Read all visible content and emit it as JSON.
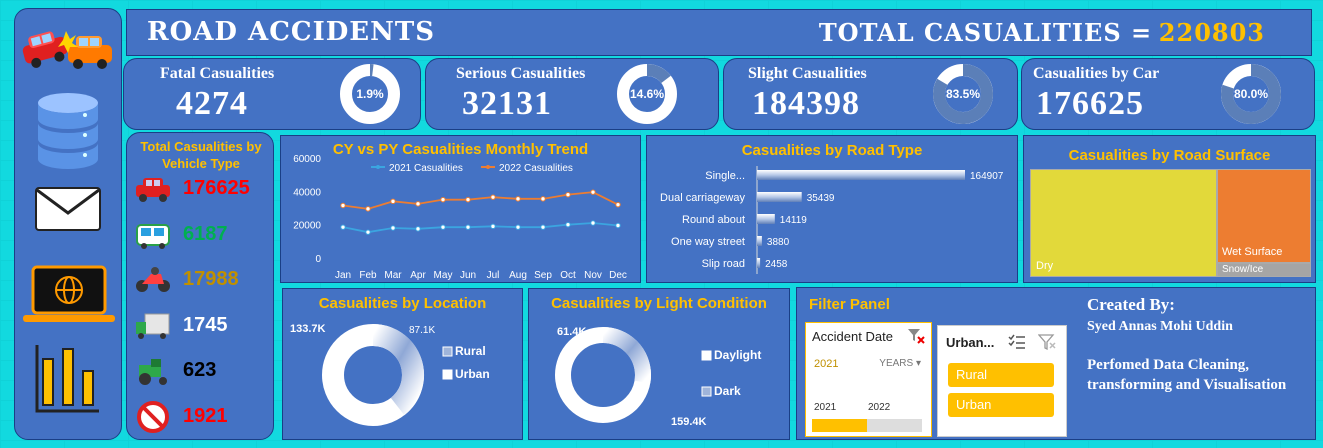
{
  "header": {
    "title": "ROAD ACCIDENTS",
    "total_label": "TOTAL CASUALITIES =",
    "total_value": "220803"
  },
  "kpis": [
    {
      "label": "Fatal Casualities",
      "value": "4274",
      "pct": "1.9%",
      "fraction": 0.019
    },
    {
      "label": "Serious Casualities",
      "value": "32131",
      "pct": "14.6%",
      "fraction": 0.146
    },
    {
      "label": "Slight Casualities",
      "value": "184398",
      "pct": "83.5%",
      "fraction": 0.835
    },
    {
      "label": "Casualities by Car",
      "value": "176625",
      "pct": "80.0%",
      "fraction": 0.8
    }
  ],
  "vehicle_panel": {
    "title": "Total Casualities by Vehicle Type",
    "items": [
      {
        "icon": "car-icon",
        "value": "176625",
        "color": "#ff0000"
      },
      {
        "icon": "bus-icon",
        "value": "6187",
        "color": "#00b050"
      },
      {
        "icon": "motorcycle-icon",
        "value": "17988",
        "color": "#c09000"
      },
      {
        "icon": "truck-icon",
        "value": "1745",
        "color": "#ffffff"
      },
      {
        "icon": "tractor-icon",
        "value": "623",
        "color": "#000000"
      },
      {
        "icon": "no-entry-icon",
        "value": "1921",
        "color": "#ff0000"
      }
    ]
  },
  "sidebar": {
    "icons": [
      "car-crash-icon",
      "database-icon",
      "mail-icon",
      "laptop-globe-icon",
      "bar-chart-icon"
    ]
  },
  "chart_data": [
    {
      "type": "line",
      "title": "CY vs PY Casualities Monthly Trend",
      "categories": [
        "Jan",
        "Feb",
        "Mar",
        "Apr",
        "May",
        "Jun",
        "Jul",
        "Aug",
        "Sep",
        "Oct",
        "Nov",
        "Dec"
      ],
      "series": [
        {
          "name": "2021 Casualities",
          "color": "#3ba5e0",
          "values": [
            18500,
            15500,
            18000,
            17500,
            18500,
            18500,
            19000,
            18500,
            18500,
            20000,
            21000,
            19500
          ]
        },
        {
          "name": "2022 Casualities",
          "color": "#ed7d31",
          "values": [
            31500,
            29500,
            34000,
            32500,
            35000,
            35000,
            36500,
            35500,
            35500,
            38000,
            39500,
            32000
          ]
        }
      ],
      "yticks": [
        "0",
        "20000",
        "40000",
        "60000"
      ],
      "ylim": [
        0,
        60000
      ],
      "legend": "top"
    },
    {
      "type": "bar",
      "title": "Casualities by Road Type",
      "categories": [
        "Single...",
        "Dual carriageway",
        "Round about",
        "One way street",
        "Slip road"
      ],
      "values": [
        164907,
        35439,
        14119,
        3880,
        2458
      ],
      "labels": [
        "164907",
        "35439",
        "14119",
        "3880",
        "2458"
      ]
    },
    {
      "type": "heatmap",
      "title": "Casualities by Road Surface",
      "categories": [
        "Dry",
        "Wet Surface",
        "Snow/Ice"
      ]
    },
    {
      "type": "pie",
      "title": "Casualities by Location",
      "categories": [
        "Rural",
        "Urban"
      ],
      "values": [
        87100,
        133700
      ],
      "labels": [
        "87.1K",
        "133.7K"
      ]
    },
    {
      "type": "pie",
      "title": "Casualities by Light Condition",
      "categories": [
        "Daylight",
        "Dark"
      ],
      "values": [
        159400,
        61400
      ],
      "labels": [
        "159.4K",
        "61.4K"
      ]
    }
  ],
  "filter_panel": {
    "title": "Filter Panel",
    "date_slicer": {
      "title": "Accident Date",
      "selected": "2021",
      "unit": "YEARS",
      "years": [
        "2021",
        "2022"
      ],
      "fill": 0.5
    },
    "urban_slicer": {
      "title": "Urban...",
      "items": [
        "Rural",
        "Urban"
      ]
    }
  },
  "credits": {
    "title": "Created By:",
    "name": "Syed Annas Mohi Uddin",
    "desc": "Perfomed Data Cleaning, transforming and Visualisation"
  },
  "colors": {
    "panel": "#4472c4",
    "accent": "#ffc000",
    "background": "#12d9df"
  }
}
